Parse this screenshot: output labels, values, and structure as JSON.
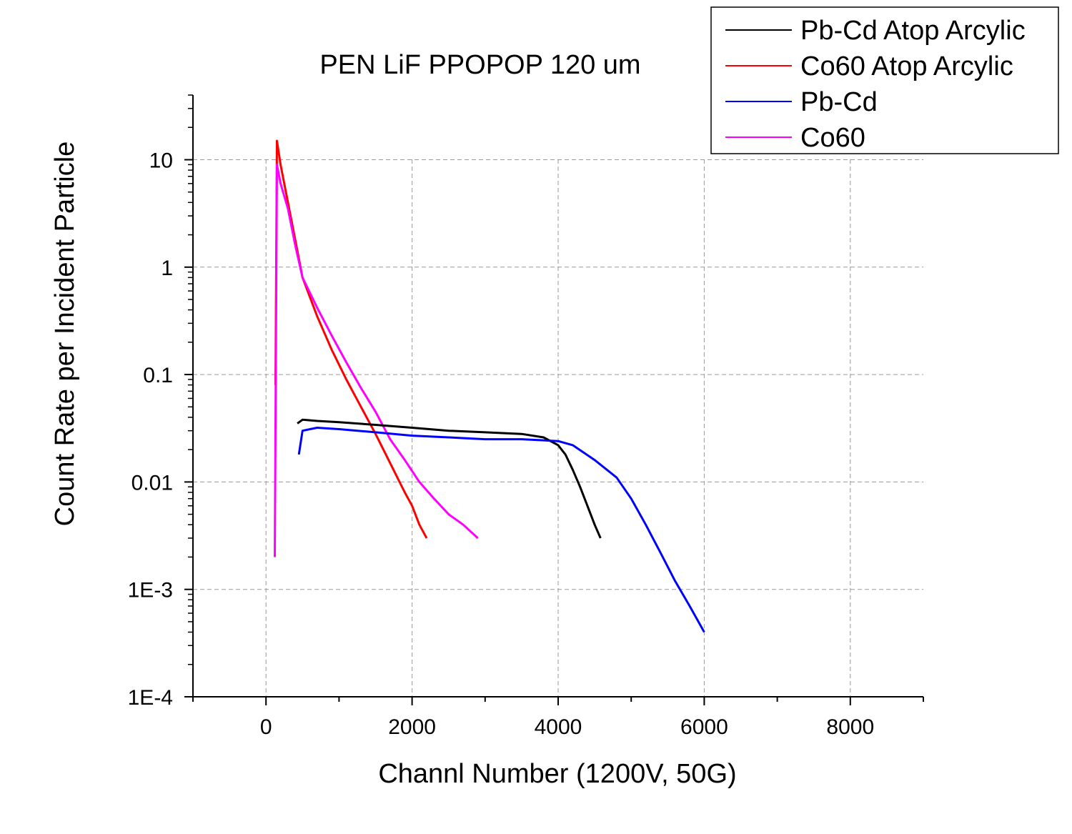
{
  "chart_data": {
    "type": "line",
    "title": "PEN LiF PPOPOP 120 um",
    "xlabel": "Channl Number (1200V, 50G)",
    "ylabel": "Count Rate per Incident Particle",
    "xlim": [
      -1000,
      9000
    ],
    "ylim": [
      0.0001,
      40
    ],
    "yscale": "log",
    "grid": true,
    "legend_position": "top-right",
    "x_ticks": [
      {
        "value": 0,
        "label": "0"
      },
      {
        "value": 2000,
        "label": "2000"
      },
      {
        "value": 4000,
        "label": "4000"
      },
      {
        "value": 6000,
        "label": "6000"
      },
      {
        "value": 8000,
        "label": "8000"
      }
    ],
    "y_ticks": [
      {
        "value": 10,
        "label": "10"
      },
      {
        "value": 1,
        "label": "1"
      },
      {
        "value": 0.1,
        "label": "0.1"
      },
      {
        "value": 0.01,
        "label": "0.01"
      },
      {
        "value": 0.001,
        "label": "1E-3"
      },
      {
        "value": 0.0001,
        "label": "1E-4"
      }
    ],
    "series": [
      {
        "name": "Pb-Cd Atop Arcylic",
        "color": "#000000",
        "x": [
          430,
          500,
          700,
          1000,
          1500,
          2000,
          2500,
          3000,
          3500,
          3800,
          4000,
          4100,
          4200,
          4300,
          4400,
          4500,
          4580
        ],
        "y": [
          0.035,
          0.038,
          0.037,
          0.036,
          0.034,
          0.032,
          0.03,
          0.029,
          0.028,
          0.026,
          0.022,
          0.018,
          0.013,
          0.009,
          0.006,
          0.004,
          0.003
        ]
      },
      {
        "name": "Co60 Atop Arcylic",
        "color": "#ff0000",
        "x": [
          130,
          150,
          200,
          300,
          400,
          500,
          700,
          900,
          1100,
          1300,
          1500,
          1700,
          1900,
          2000,
          2100,
          2200
        ],
        "y": [
          0.08,
          15,
          9,
          4,
          1.8,
          0.8,
          0.35,
          0.17,
          0.09,
          0.05,
          0.028,
          0.015,
          0.008,
          0.006,
          0.004,
          0.003
        ]
      },
      {
        "name": "Pb-Cd",
        "color": "#0000ff",
        "x": [
          450,
          500,
          700,
          1000,
          1500,
          2000,
          2500,
          3000,
          3500,
          4000,
          4200,
          4500,
          4800,
          5000,
          5200,
          5400,
          5600,
          5800,
          6000
        ],
        "y": [
          0.018,
          0.03,
          0.032,
          0.031,
          0.029,
          0.027,
          0.026,
          0.025,
          0.025,
          0.024,
          0.022,
          0.016,
          0.011,
          0.007,
          0.004,
          0.0022,
          0.0012,
          0.0007,
          0.0004
        ]
      },
      {
        "name": "Co60",
        "color": "#ff00ff",
        "x": [
          120,
          150,
          200,
          300,
          400,
          500,
          700,
          900,
          1100,
          1300,
          1500,
          1700,
          1900,
          2100,
          2300,
          2500,
          2700,
          2900
        ],
        "y": [
          0.002,
          9,
          6,
          3.5,
          1.6,
          0.8,
          0.42,
          0.23,
          0.13,
          0.075,
          0.045,
          0.025,
          0.016,
          0.01,
          0.007,
          0.005,
          0.004,
          0.003
        ]
      }
    ]
  }
}
